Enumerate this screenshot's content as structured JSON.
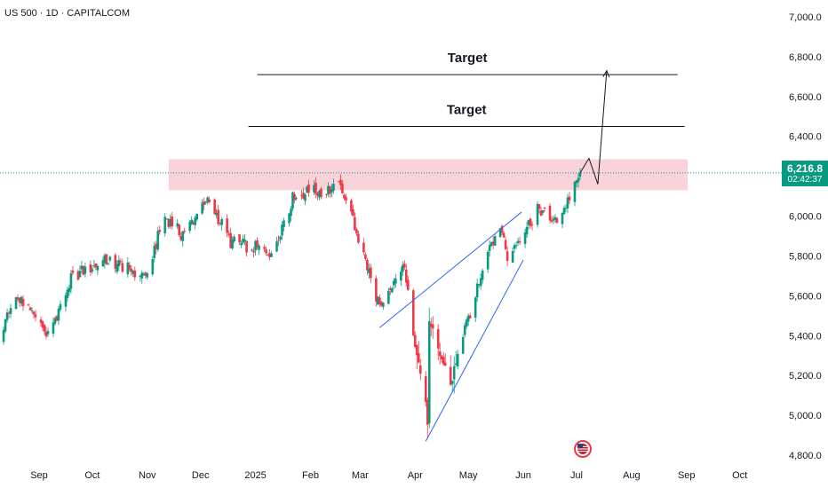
{
  "header": {
    "symbol": "US 500 · 1D · CAPITALCOM"
  },
  "price_badge": {
    "price": "6,216.8",
    "countdown": "02:42:37",
    "color": "#089981"
  },
  "colors": {
    "up": "#089981",
    "down": "#f23645",
    "trendline": "#2962ff",
    "zone": "#f8c8cf",
    "text": "#131722"
  },
  "chart_data": {
    "type": "candlestick",
    "symbol": "US 500",
    "interval": "1D",
    "source": "CAPITALCOM",
    "y_ticks": [
      "7,000.0",
      "6,800.0",
      "6,600.0",
      "6,400.0",
      "6,200.0",
      "6,000.0",
      "5,800.0",
      "5,600.0",
      "5,400.0",
      "5,200.0",
      "5,000.0",
      "4,800.0"
    ],
    "ylim": [
      4780,
      7050
    ],
    "x_ticks": [
      "Sep",
      "Oct",
      "Nov",
      "Dec",
      "2025",
      "Feb",
      "Mar",
      "Apr",
      "May",
      "Jun",
      "Jul",
      "Aug",
      "Sep",
      "Oct"
    ],
    "x_tick_dates": [
      "2024-09-01",
      "2024-10-01",
      "2024-11-01",
      "2024-12-01",
      "2025-01-01",
      "2025-02-01",
      "2025-03-01",
      "2025-04-01",
      "2025-05-01",
      "2025-06-01",
      "2025-07-01",
      "2025-08-01",
      "2025-09-01",
      "2025-10-01"
    ],
    "close_anchors": [
      [
        "2024-08-05",
        5310
      ],
      [
        "2024-08-20",
        5600
      ],
      [
        "2024-09-06",
        5400
      ],
      [
        "2024-09-20",
        5700
      ],
      [
        "2024-10-10",
        5780
      ],
      [
        "2024-10-31",
        5700
      ],
      [
        "2024-11-11",
        6000
      ],
      [
        "2024-11-20",
        5910
      ],
      [
        "2024-12-06",
        6080
      ],
      [
        "2024-12-18",
        5870
      ],
      [
        "2025-01-10",
        5820
      ],
      [
        "2025-01-23",
        6110
      ],
      [
        "2025-02-19",
        6140
      ],
      [
        "2025-03-13",
        5520
      ],
      [
        "2025-03-25",
        5770
      ],
      [
        "2025-04-08",
        4980
      ],
      [
        "2025-04-09",
        5450
      ],
      [
        "2025-04-21",
        5160
      ],
      [
        "2025-05-12",
        5840
      ],
      [
        "2025-05-19",
        5960
      ],
      [
        "2025-05-23",
        5800
      ],
      [
        "2025-06-10",
        6040
      ],
      [
        "2025-06-20",
        5960
      ],
      [
        "2025-07-03",
        6216.8
      ]
    ],
    "resistance_zone": {
      "low": 6130,
      "high": 6285
    },
    "target_levels": [
      {
        "label": "Target",
        "price": 6450,
        "start": "2024-12-28",
        "end": "2025-08-31"
      },
      {
        "label": "Target",
        "price": 6710,
        "start": "2025-01-02",
        "end": "2025-08-27"
      }
    ],
    "trendlines": [
      {
        "from": [
          "2025-03-12",
          5440
        ],
        "to": [
          "2025-05-31",
          6020
        ]
      },
      {
        "from": [
          "2025-04-07",
          4870
        ],
        "to": [
          "2025-06-01",
          5780
        ]
      }
    ],
    "projection_path": [
      [
        "2025-07-03",
        6216.8
      ],
      [
        "2025-07-08",
        6290
      ],
      [
        "2025-07-13",
        6160
      ],
      [
        "2025-07-18",
        6730
      ]
    ],
    "current_price": 6216.8,
    "current_price_label": "6,216.8",
    "countdown": "02:42:37"
  }
}
